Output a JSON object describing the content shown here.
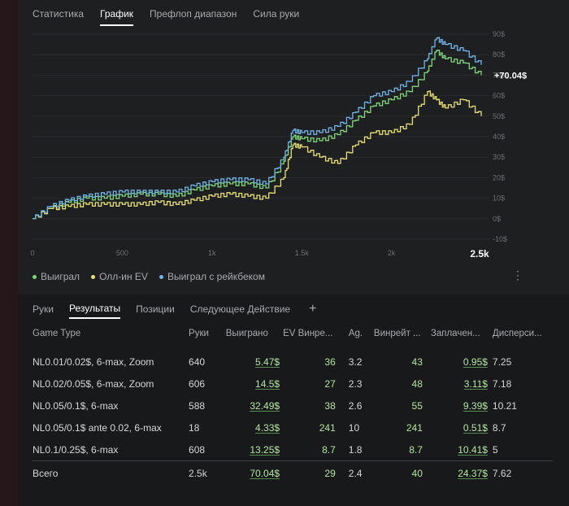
{
  "tabs": [
    "Статистика",
    "График",
    "Префлоп диапазон",
    "Сила руки"
  ],
  "active_tab": "График",
  "chart_data": {
    "type": "line",
    "x_ticks": [
      "0",
      "500",
      "1k",
      "1.5k",
      "2k",
      "2.5k"
    ],
    "x_tick_values": [
      0,
      500,
      1000,
      1500,
      2000,
      2500
    ],
    "y_ticks": [
      "90$",
      "80$",
      "70$",
      "60$",
      "50$",
      "40$",
      "30$",
      "20$",
      "10$",
      "0$",
      "-10$"
    ],
    "y_tick_values": [
      90,
      80,
      70,
      60,
      50,
      40,
      30,
      20,
      10,
      0,
      -10
    ],
    "xlim": [
      0,
      2500
    ],
    "ylim": [
      -10,
      90
    ],
    "end_label": "+70.04$",
    "series": [
      {
        "name": "Выиграл",
        "color": "#7ed87a",
        "x": [
          0,
          100,
          200,
          300,
          400,
          500,
          600,
          700,
          800,
          900,
          1000,
          1100,
          1200,
          1300,
          1400,
          1450,
          1500,
          1600,
          1700,
          1800,
          1900,
          2000,
          2100,
          2200,
          2250,
          2300,
          2400,
          2500
        ],
        "y": [
          0,
          5,
          8,
          10,
          10,
          11,
          12,
          12,
          11,
          14,
          16,
          17,
          17,
          15,
          28,
          40,
          39,
          38,
          41,
          48,
          55,
          58,
          62,
          72,
          82,
          78,
          76,
          70
        ]
      },
      {
        "name": "Олл-ин EV",
        "color": "#e8e070",
        "x": [
          0,
          100,
          200,
          300,
          400,
          500,
          600,
          700,
          800,
          900,
          1000,
          1100,
          1200,
          1300,
          1400,
          1450,
          1500,
          1600,
          1700,
          1800,
          1900,
          2000,
          2100,
          2200,
          2250,
          2300,
          2400,
          2500
        ],
        "y": [
          0,
          5,
          6,
          7,
          7,
          7,
          7,
          8,
          7,
          9,
          11,
          12,
          11,
          10,
          20,
          36,
          35,
          30,
          27,
          36,
          42,
          42,
          46,
          62,
          58,
          54,
          58,
          50
        ]
      },
      {
        "name": "Выиграл с рейкбеком",
        "color": "#6fb4e8",
        "x": [
          0,
          100,
          200,
          300,
          400,
          500,
          600,
          700,
          800,
          900,
          1000,
          1100,
          1200,
          1300,
          1400,
          1450,
          1500,
          1600,
          1700,
          1800,
          1900,
          2000,
          2100,
          2200,
          2250,
          2300,
          2400,
          2500
        ],
        "y": [
          0,
          6,
          9,
          11,
          12,
          13,
          13,
          13,
          13,
          16,
          18,
          19,
          19,
          17,
          30,
          43,
          42,
          42,
          45,
          52,
          60,
          62,
          67,
          78,
          88,
          85,
          82,
          75
        ]
      }
    ]
  },
  "legend": [
    "Выиграл",
    "Олл-ин EV",
    "Выиграл с рейкбеком"
  ],
  "subtabs": [
    "Руки",
    "Результаты",
    "Позиции",
    "Следующее Действие"
  ],
  "active_subtab": "Результаты",
  "table": {
    "headers": [
      "Game Type",
      "Руки",
      "Выиграно",
      "EV Винре...",
      "Ag.",
      "Винрейт ...",
      "Заплачен...",
      "Дисперси..."
    ],
    "rows": [
      [
        "NL0.01/0.02$, 6-max, Zoom",
        "640",
        "5.47$",
        "36",
        "3.2",
        "43",
        "0.95$",
        "7.25"
      ],
      [
        "NL0.02/0.05$, 6-max, Zoom",
        "606",
        "14.5$",
        "27",
        "2.3",
        "48",
        "3.11$",
        "7.18"
      ],
      [
        "NL0.05/0.1$, 6-max",
        "588",
        "32.49$",
        "38",
        "2.6",
        "55",
        "9.39$",
        "10.21"
      ],
      [
        "NL0.05/0.1$ ante 0.02, 6-max",
        "18",
        "4.33$",
        "241",
        "10",
        "241",
        "0.51$",
        "8.7"
      ],
      [
        "NL0.1/0.25$, 6-max",
        "608",
        "13.25$",
        "8.7",
        "1.8",
        "8.7",
        "10.41$",
        "5"
      ]
    ],
    "total": [
      "Всего",
      "2.5k",
      "70.04$",
      "29",
      "2.4",
      "40",
      "24.37$",
      "7.62"
    ]
  }
}
